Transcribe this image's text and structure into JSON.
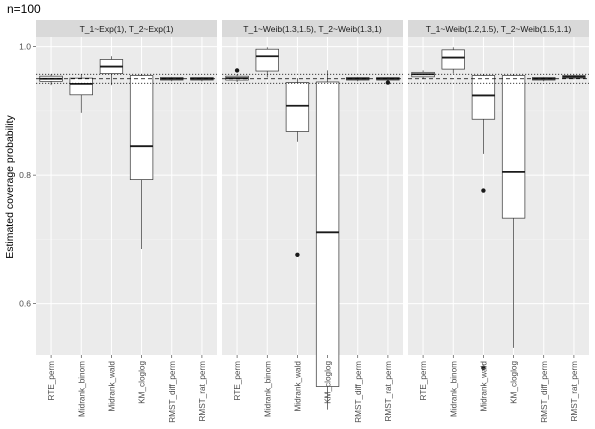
{
  "title": "n=100",
  "chart_data": {
    "type": "boxplot",
    "title": "n=100",
    "ylabel": "Estimated coverage probability",
    "xlabel": "",
    "ylim": [
      0.52,
      1.015
    ],
    "yticks": [
      0.6,
      0.8,
      1.0
    ],
    "ytick_labels": [
      "0.6",
      "0.8",
      "1.0"
    ],
    "reference_lines": [
      {
        "y": 0.95,
        "style": "dashed"
      },
      {
        "y": 0.957,
        "style": "dotted"
      },
      {
        "y": 0.943,
        "style": "dotted"
      }
    ],
    "categories": [
      "RTE_perm",
      "Midrank_binom",
      "Midrank_wald",
      "KM_cloglog",
      "RMST_diff_perm",
      "RMST_rat_perm"
    ],
    "grid": true,
    "background": "#ebebeb",
    "colors": {
      "box_line": "#333333",
      "strip": "#d9d9d9",
      "grid_major": "#ffffff",
      "grid_minor": "#f5f5f5"
    },
    "panels": [
      {
        "label": "T_1~Exp(1), T_2~Exp(1)",
        "boxes": [
          {
            "q1": 0.946,
            "median": 0.95,
            "q3": 0.954,
            "lower": 0.94,
            "upper": 0.957,
            "outliers": []
          },
          {
            "q1": 0.925,
            "median": 0.942,
            "q3": 0.951,
            "lower": 0.897,
            "upper": 0.957,
            "outliers": []
          },
          {
            "q1": 0.958,
            "median": 0.969,
            "q3": 0.98,
            "lower": 0.94,
            "upper": 0.985,
            "outliers": []
          },
          {
            "q1": 0.793,
            "median": 0.845,
            "q3": 0.955,
            "lower": 0.685,
            "upper": 0.957,
            "outliers": []
          },
          {
            "q1": 0.948,
            "median": 0.95,
            "q3": 0.952,
            "lower": 0.946,
            "upper": 0.953,
            "outliers": []
          },
          {
            "q1": 0.948,
            "median": 0.95,
            "q3": 0.952,
            "lower": 0.946,
            "upper": 0.953,
            "outliers": []
          }
        ]
      },
      {
        "label": "T_1~Weib(1.3,1.5), T_2~Weib(1.3,1)",
        "boxes": [
          {
            "q1": 0.948,
            "median": 0.951,
            "q3": 0.954,
            "lower": 0.945,
            "upper": 0.957,
            "outliers": [
              0.963
            ]
          },
          {
            "q1": 0.962,
            "median": 0.985,
            "q3": 0.996,
            "lower": 0.952,
            "upper": 0.999,
            "outliers": []
          },
          {
            "q1": 0.868,
            "median": 0.908,
            "q3": 0.944,
            "lower": 0.852,
            "upper": 0.951,
            "outliers": [
              0.676
            ]
          },
          {
            "q1": 0.471,
            "median": 0.711,
            "q3": 0.945,
            "lower": 0.435,
            "upper": 0.963,
            "outliers": []
          },
          {
            "q1": 0.948,
            "median": 0.95,
            "q3": 0.952,
            "lower": 0.946,
            "upper": 0.953,
            "outliers": []
          },
          {
            "q1": 0.948,
            "median": 0.95,
            "q3": 0.952,
            "lower": 0.946,
            "upper": 0.953,
            "outliers": [
              0.944
            ]
          }
        ]
      },
      {
        "label": "T_1~Weib(1.2,1.5), T_2~Weib(1.5,1.1)",
        "boxes": [
          {
            "q1": 0.953,
            "median": 0.957,
            "q3": 0.96,
            "lower": 0.95,
            "upper": 0.963,
            "outliers": []
          },
          {
            "q1": 0.965,
            "median": 0.983,
            "q3": 0.995,
            "lower": 0.958,
            "upper": 0.999,
            "outliers": []
          },
          {
            "q1": 0.887,
            "median": 0.924,
            "q3": 0.955,
            "lower": 0.833,
            "upper": 0.957,
            "outliers": [
              0.776,
              0.5
            ]
          },
          {
            "q1": 0.733,
            "median": 0.805,
            "q3": 0.955,
            "lower": 0.531,
            "upper": 0.957,
            "outliers": []
          },
          {
            "q1": 0.948,
            "median": 0.95,
            "q3": 0.952,
            "lower": 0.946,
            "upper": 0.953,
            "outliers": []
          },
          {
            "q1": 0.951,
            "median": 0.953,
            "q3": 0.955,
            "lower": 0.949,
            "upper": 0.956,
            "outliers": []
          }
        ]
      }
    ]
  }
}
